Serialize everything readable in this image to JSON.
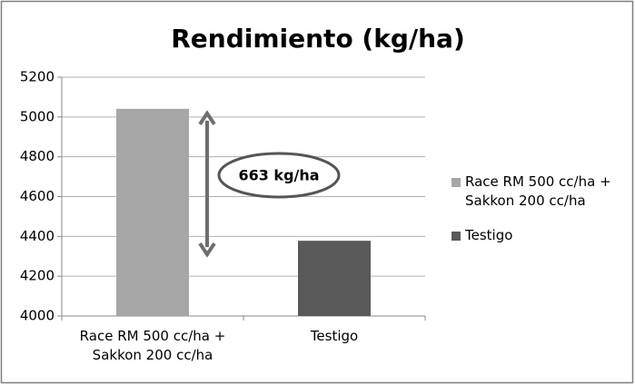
{
  "chart_data": {
    "type": "bar",
    "title": "Rendimiento (kg/ha)",
    "categories": [
      "Race RM 500 cc/ha + Sakkon 200 cc/ha",
      "Testigo"
    ],
    "values": [
      5041,
      4378
    ],
    "colors": [
      "#a6a6a6",
      "#595959"
    ],
    "ylim": [
      4000,
      5200
    ],
    "yticks": [
      4000,
      4200,
      4400,
      4600,
      4800,
      5000,
      5200
    ],
    "grid": true,
    "legend": "right",
    "annotation": "663 kg/ha"
  }
}
